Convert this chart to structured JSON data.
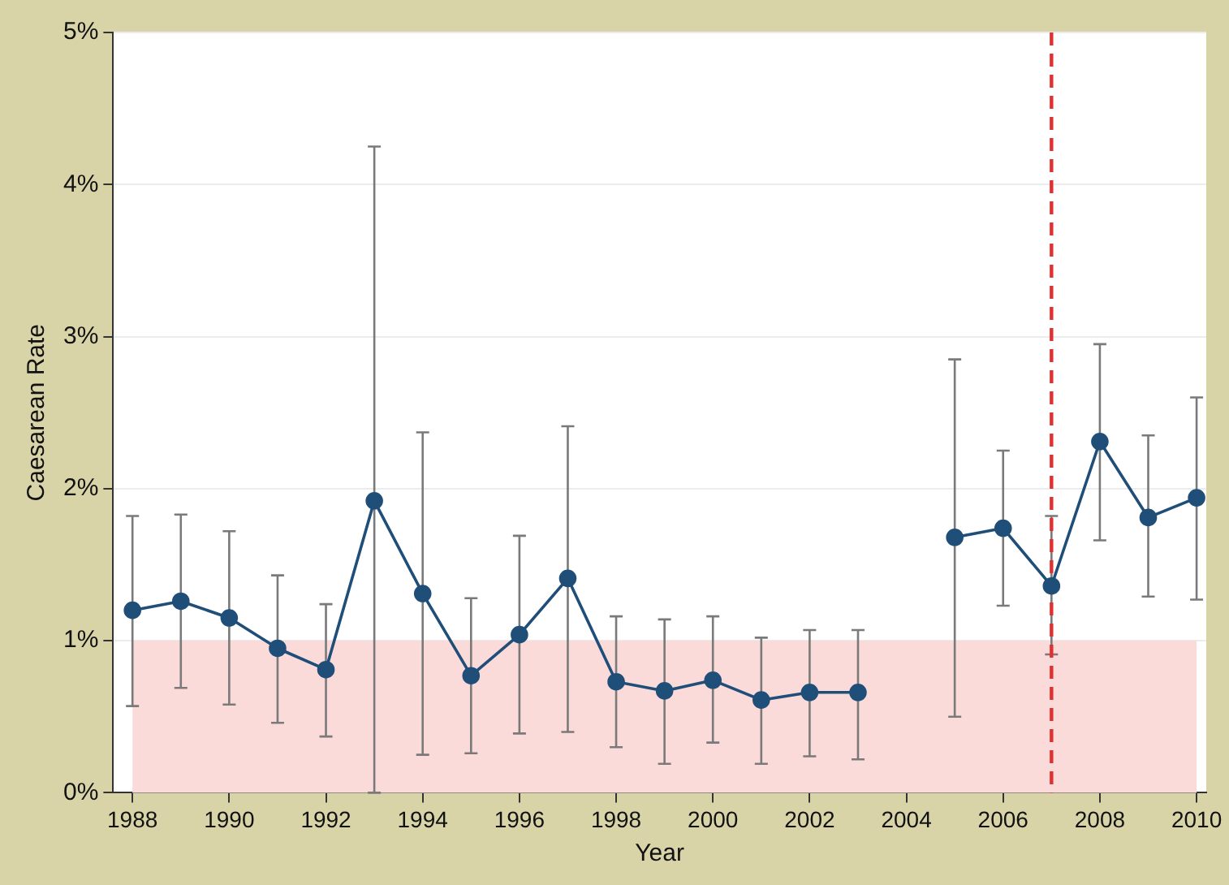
{
  "chart_data": {
    "type": "line",
    "xlabel": "Year",
    "ylabel": "Caesarean Rate",
    "x": [
      1988,
      1989,
      1990,
      1991,
      1992,
      1993,
      1994,
      1995,
      1996,
      1997,
      1998,
      1999,
      2000,
      2001,
      2002,
      2003,
      2004,
      2005,
      2006,
      2007,
      2008,
      2009,
      2010
    ],
    "series": [
      {
        "color": "#1f4e79",
        "values": [
          1.2,
          1.26,
          1.15,
          0.95,
          0.81,
          1.92,
          1.31,
          0.77,
          1.04,
          1.41,
          0.73,
          0.67,
          0.74,
          0.61,
          0.66,
          0.66,
          null,
          1.68,
          1.74,
          1.36,
          2.31,
          1.81,
          1.94
        ],
        "errors": [
          [
            0.57,
            1.82
          ],
          [
            0.69,
            1.83
          ],
          [
            0.58,
            1.72
          ],
          [
            0.46,
            1.43
          ],
          [
            0.37,
            1.24
          ],
          [
            0.0,
            4.25
          ],
          [
            0.25,
            2.37
          ],
          [
            0.26,
            1.28
          ],
          [
            0.39,
            1.69
          ],
          [
            0.4,
            2.41
          ],
          [
            0.3,
            1.16
          ],
          [
            0.19,
            1.14
          ],
          [
            0.33,
            1.16
          ],
          [
            0.19,
            1.02
          ],
          [
            0.24,
            1.07
          ],
          [
            0.22,
            1.07
          ],
          null,
          [
            0.5,
            2.85
          ],
          [
            1.23,
            2.25
          ],
          [
            0.91,
            1.82
          ],
          [
            1.66,
            2.95
          ],
          [
            1.29,
            2.35
          ],
          [
            1.27,
            2.6
          ]
        ]
      }
    ],
    "xlim": [
      1987.6,
      2010.2
    ],
    "xticks": [
      1988,
      1990,
      1992,
      1994,
      1996,
      1998,
      2000,
      2002,
      2004,
      2006,
      2008,
      2010
    ],
    "ylim": [
      0,
      5
    ],
    "yticks": [
      {
        "value": 0,
        "label": "0%"
      },
      {
        "value": 1,
        "label": "1%"
      },
      {
        "value": 2,
        "label": "2%"
      },
      {
        "value": 3,
        "label": "3%"
      },
      {
        "value": 4,
        "label": "4%"
      },
      {
        "value": 5,
        "label": "5%"
      }
    ],
    "grid": "y",
    "marker": "circle",
    "line_style": "solid",
    "legend": false,
    "ref_lines": [
      {
        "axis": "x",
        "value": 2007,
        "color": "#e03030",
        "line_style": "dashed"
      }
    ],
    "bands": [
      {
        "axis": "y",
        "from": 0,
        "to": 1,
        "color": "#fbdada"
      }
    ]
  }
}
